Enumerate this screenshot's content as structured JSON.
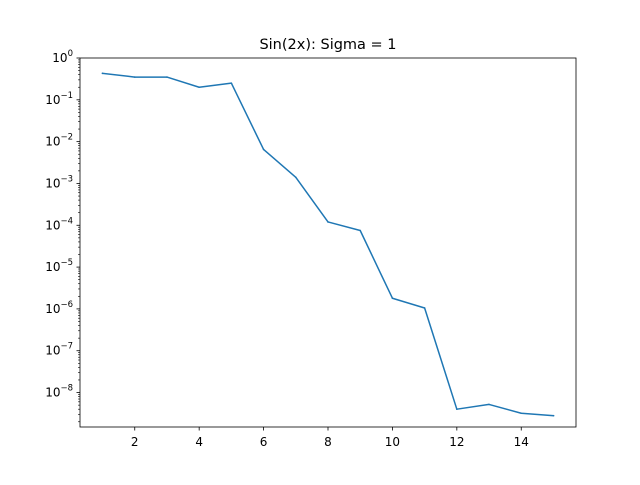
{
  "chart_data": {
    "type": "line",
    "title": "Sin(2x): Sigma = 1",
    "xlabel": "",
    "ylabel": "",
    "x_scale": "linear",
    "y_scale": "log",
    "xlim": [
      0.3,
      15.7
    ],
    "ylim": [
      1.5e-09,
      1.0
    ],
    "x_ticks": [
      2,
      4,
      6,
      8,
      10,
      12,
      14
    ],
    "y_ticks": [
      {
        "value": 1,
        "base": "10",
        "exp": "0"
      },
      {
        "value": 0.1,
        "base": "10",
        "exp": "−1"
      },
      {
        "value": 0.01,
        "base": "10",
        "exp": "−2"
      },
      {
        "value": 0.001,
        "base": "10",
        "exp": "−3"
      },
      {
        "value": 0.0001,
        "base": "10",
        "exp": "−4"
      },
      {
        "value": 1e-05,
        "base": "10",
        "exp": "−5"
      },
      {
        "value": 1e-06,
        "base": "10",
        "exp": "−6"
      },
      {
        "value": 1e-07,
        "base": "10",
        "exp": "−7"
      },
      {
        "value": 1e-08,
        "base": "10",
        "exp": "−8"
      }
    ],
    "grid": false,
    "legend": "none",
    "series": [
      {
        "color": "#1f77b4",
        "x": [
          1,
          2,
          3,
          4,
          5,
          6,
          7,
          8,
          9,
          10,
          11,
          12,
          13,
          14,
          15
        ],
        "y": [
          0.43,
          0.35,
          0.35,
          0.2,
          0.25,
          0.0065,
          0.0014,
          0.00012,
          7.5e-05,
          1.8e-06,
          1.05e-06,
          4e-09,
          5.2e-09,
          3.2e-09,
          2.8e-09
        ]
      }
    ]
  }
}
